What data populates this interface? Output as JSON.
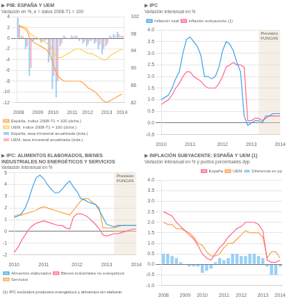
{
  "chart_data": [
    {
      "type": "bar",
      "title": "▶ PIB: ESPAÑA Y UEM",
      "subtitle": "Variación en %, e = datos 2008-T1 = 100",
      "categories": [
        "2008",
        null,
        null,
        null,
        null,
        "2009",
        null,
        null,
        null,
        "2010",
        null,
        null,
        null,
        null,
        "2011",
        null,
        null,
        null,
        "2012",
        null,
        null,
        null,
        null,
        "2013",
        null,
        null,
        null,
        "2014"
      ],
      "series": [
        {
          "name": "España, tasa trimestral anualizada (izda.)",
          "type": "bar",
          "values": [
            3.8,
            0.5,
            -2.0,
            -7.0,
            -0.5,
            -0.3,
            -0.8,
            -0.5,
            -4.5,
            -9.5,
            -11.0,
            -1.5,
            0.5,
            0.0,
            0.5,
            0.5,
            -0.5,
            -1.0,
            -1.5,
            -0.5,
            -1.0,
            -2.0,
            -3.0,
            -1.5,
            0.5,
            0.8,
            1.2,
            0.5
          ]
        },
        {
          "name": "UEM, tasa trimestral anualizada (izda.)",
          "type": "bar",
          "values": [
            2.5,
            0.3,
            -1.5,
            -5.5,
            -0.3,
            -0.2,
            -0.6,
            -0.3,
            -3.0,
            -7.0,
            -8.0,
            -1.0,
            0.3,
            0.0,
            0.3,
            0.4,
            -0.2,
            -0.6,
            -1.0,
            -0.3,
            -0.7,
            -1.2,
            -2.0,
            -1.0,
            0.3,
            0.5,
            0.8,
            0.4
          ]
        },
        {
          "name": "España, índice 2008-T1 = 100 (dcha.)",
          "type": "line",
          "axis": "y2",
          "values": [
            100,
            99.5,
            99.0,
            97.0,
            96.0,
            95.5,
            95.0,
            94.5,
            93.5,
            91.0,
            88.5,
            87.5,
            87.0,
            87.0,
            87.0,
            87.0,
            87.0,
            86.5,
            85.5,
            85.0,
            84.5,
            83.5,
            82.5,
            82.0,
            82.5,
            83.0,
            83.5,
            84.0
          ]
        },
        {
          "name": "UEM, índice 2008-T1 = 100 (dcha.)",
          "type": "line",
          "axis": "y2",
          "values": [
            100,
            99.8,
            99.5,
            98.0,
            97.5,
            97.0,
            96.5,
            96.0,
            95.5,
            94.0,
            92.5,
            92.5,
            93.0,
            93.5,
            94.0,
            94.5,
            94.5,
            94.0,
            93.5,
            93.5,
            93.0,
            92.5,
            92.0,
            92.0,
            93.0,
            93.5,
            94.0,
            94.5
          ]
        }
      ],
      "ylim": [
        -12,
        4
      ],
      "yticks": [
        4,
        2,
        0,
        -2,
        -4,
        -6,
        -8,
        -10,
        -12
      ],
      "y2lim": [
        82,
        102
      ],
      "y2ticks": [
        102,
        98,
        94,
        90,
        86,
        82
      ],
      "grid": "y",
      "legend": "lower left"
    },
    {
      "type": "line",
      "title": "▶ IPC",
      "subtitle": "Variación interanual en %",
      "categories": [
        "2010",
        null,
        null,
        null,
        null,
        null,
        null,
        null,
        "2011",
        null,
        null,
        null,
        null,
        null,
        null,
        null,
        null,
        "2012",
        null,
        null,
        null,
        null,
        null,
        null,
        null,
        "2013",
        null,
        null,
        null,
        null,
        null,
        null,
        null,
        "2014"
      ],
      "series": [
        {
          "name": "Inflación total",
          "values": [
            1.0,
            1.1,
            1.2,
            1.5,
            1.9,
            2.2,
            3.0,
            3.6,
            3.7,
            3.5,
            3.3,
            2.9,
            2.0,
            2.0,
            1.9,
            2.0,
            2.4,
            3.1,
            3.5,
            3.4,
            3.1,
            2.6,
            2.2,
            0.3,
            -0.1,
            0.0,
            0.1,
            0.1,
            0.0,
            0.3,
            0.3,
            0.4,
            0.4,
            0.4
          ]
        },
        {
          "name": "Inflación subyacente (1)",
          "values": [
            0.8,
            0.9,
            1.0,
            1.2,
            1.5,
            1.7,
            2.0,
            2.2,
            2.2,
            2.0,
            1.9,
            1.8,
            1.6,
            1.5,
            1.5,
            1.5,
            1.7,
            2.0,
            2.4,
            2.5,
            2.6,
            2.5,
            2.5,
            2.4,
            0.1,
            0.1,
            0.2,
            0.2,
            0.1,
            0.2,
            0.3,
            0.3,
            0.3,
            0.3
          ]
        }
      ],
      "ylim": [
        -0.5,
        4.0
      ],
      "yticks": [
        -0.5,
        {
          "value": 0,
          "label": "0.0"
        },
        0.5,
        {
          "value": 1,
          "label": "1.0"
        },
        1.5,
        {
          "value": 2,
          "label": "2.0"
        },
        2.5,
        {
          "value": 3,
          "label": "3.0"
        },
        3.5,
        {
          "value": 4,
          "label": "4.0"
        }
      ],
      "annotations": [
        {
          "text": "Previsión\nFUNCAS",
          "x": [
            27,
            33
          ],
          "color": "#e8d8c4"
        }
      ],
      "grid": "y",
      "legend": "upper left"
    },
    {
      "type": "line",
      "title": "▶ IPC: ALIMENTOS ELABORADOS, BIENES\nINDUSTRIALES NO ENERGÉTICOS Y SERVICIOS",
      "subtitle": "Variación interanual en %",
      "categories": [
        "2010",
        null,
        null,
        null,
        null,
        null,
        null,
        null,
        "2011",
        null,
        null,
        null,
        null,
        null,
        null,
        null,
        null,
        "2012",
        null,
        null,
        null,
        null,
        null,
        null,
        null,
        "2013",
        null,
        null,
        null,
        null,
        null,
        null,
        null,
        "2014"
      ],
      "series": [
        {
          "name": "Alimentos elaborados",
          "values": [
            1.2,
            1.3,
            1.5,
            2.0,
            2.8,
            3.8,
            4.6,
            4.8,
            4.5,
            4.0,
            3.6,
            3.3,
            3.3,
            3.6,
            4.0,
            4.3,
            3.8,
            3.4,
            2.8,
            2.7,
            2.5,
            2.4,
            2.3,
            1.8,
            1.2,
            0.6,
            0.5,
            0.4,
            0.5,
            0.5,
            0.5,
            0.5,
            0.5,
            0.5
          ]
        },
        {
          "name": "Bienes industriales no energéticos",
          "values": [
            -1.8,
            -1.4,
            -0.8,
            -0.3,
            0.2,
            0.5,
            0.7,
            0.8,
            0.9,
            0.8,
            0.7,
            0.6,
            0.5,
            0.5,
            0.3,
            0.2,
            1.2,
            1.5,
            1.5,
            1.4,
            1.2,
            0.9,
            0.6,
            0.2,
            -0.3,
            -0.4,
            -0.3,
            -0.2,
            -0.2,
            -0.1,
            0.0,
            0.1,
            0.2,
            0.2
          ]
        },
        {
          "name": "Servicios",
          "values": [
            1.3,
            1.4,
            1.4,
            1.5,
            1.6,
            1.7,
            1.8,
            2.0,
            2.1,
            2.0,
            1.9,
            1.8,
            1.7,
            1.6,
            1.5,
            1.4,
            1.8,
            2.2,
            2.6,
            2.8,
            2.8,
            2.5,
            2.3,
            2.0,
            0.3,
            0.3,
            0.3,
            0.3,
            0.4,
            0.5,
            0.5,
            0.5,
            0.5,
            0.5
          ]
        }
      ],
      "ylim": [
        -2.0,
        5.0
      ],
      "yticks": [
        -2,
        -1,
        0,
        1,
        2,
        3,
        4,
        5
      ],
      "annotations": [
        {
          "text": "Previsión\nFUNCAS",
          "x": [
            27,
            33
          ],
          "color": "#e8d8c4"
        },
        {
          "text": "(1) IPC excluidos productos energéticos y alimentos sin elaborar"
        }
      ],
      "grid": "y",
      "legend": "lower left"
    },
    {
      "type": "bar",
      "title": "▶ INFLACIÓN SUBYACENTE: ESPAÑA Y UEM (1)",
      "subtitle": "Variación interanual en % y puntos porcentuales dpp",
      "categories": [
        "2008",
        null,
        null,
        null,
        null,
        "2009",
        null,
        null,
        null,
        "2010",
        null,
        null,
        null,
        null,
        "2011",
        null,
        null,
        null,
        "2012",
        null,
        null,
        null,
        null,
        "2013",
        null,
        null,
        null,
        "2014"
      ],
      "series": [
        {
          "name": "Diferencia en pp",
          "type": "bar",
          "values": [
            0.5,
            0.5,
            0.4,
            0.3,
            0.1,
            0.0,
            -0.1,
            -0.1,
            -0.1,
            -0.4,
            -0.3,
            -0.2,
            0.1,
            0.3,
            0.2,
            0.3,
            0.5,
            0.5,
            0.4,
            0.4,
            0.5,
            0.5,
            0.4,
            0.3,
            -0.1,
            -0.5,
            -0.5,
            -0.1
          ]
        },
        {
          "name": "España",
          "type": "line",
          "values": [
            2.5,
            2.4,
            2.3,
            2.0,
            1.8,
            1.6,
            1.4,
            1.2,
            0.9,
            0.5,
            0.3,
            0.2,
            0.5,
            0.8,
            1.0,
            1.3,
            1.5,
            1.7,
            1.8,
            2.0,
            2.0,
            2.0,
            1.9,
            1.6,
            0.2,
            0.1,
            0.1,
            0.2
          ]
        },
        {
          "name": "UEM",
          "type": "line",
          "values": [
            2.0,
            1.9,
            1.9,
            1.7,
            1.7,
            1.6,
            1.5,
            1.3,
            1.0,
            0.9,
            0.6,
            0.4,
            0.4,
            0.5,
            0.8,
            1.0,
            1.0,
            1.2,
            1.4,
            1.6,
            1.5,
            1.5,
            1.5,
            1.3,
            0.3,
            0.6,
            0.6,
            0.3
          ]
        }
      ],
      "ylim": [
        -1.0,
        4.0
      ],
      "yticks": [
        {
          "value": -1,
          "label": "-1.0"
        },
        -0.5,
        {
          "value": 0,
          "label": "0.0"
        },
        0.5,
        {
          "value": 1,
          "label": "1.0"
        },
        1.5,
        {
          "value": 2,
          "label": "2.0"
        },
        2.5,
        {
          "value": 3,
          "label": "3.0"
        },
        3.5,
        {
          "value": 4,
          "label": "4.0"
        }
      ],
      "grid": "y",
      "legend": "upper right"
    }
  ]
}
